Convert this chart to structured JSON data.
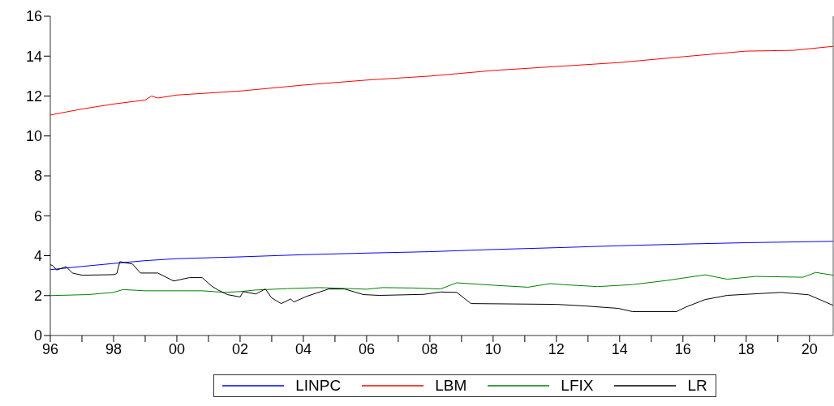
{
  "chart_data": {
    "type": "line",
    "xlim": [
      1996,
      2020.75
    ],
    "ylim": [
      0,
      16
    ],
    "yticks": [
      0,
      2,
      4,
      6,
      8,
      10,
      12,
      14,
      16
    ],
    "xticks": [
      {
        "value": 1996,
        "label": "96"
      },
      {
        "value": 1997,
        "label": null
      },
      {
        "value": 1998,
        "label": "98"
      },
      {
        "value": 1999,
        "label": null
      },
      {
        "value": 2000,
        "label": "00"
      },
      {
        "value": 2001,
        "label": null
      },
      {
        "value": 2002,
        "label": "02"
      },
      {
        "value": 2003,
        "label": null
      },
      {
        "value": 2004,
        "label": "04"
      },
      {
        "value": 2005,
        "label": null
      },
      {
        "value": 2006,
        "label": "06"
      },
      {
        "value": 2007,
        "label": null
      },
      {
        "value": 2008,
        "label": "08"
      },
      {
        "value": 2009,
        "label": null
      },
      {
        "value": 2010,
        "label": "10"
      },
      {
        "value": 2011,
        "label": null
      },
      {
        "value": 2012,
        "label": "12"
      },
      {
        "value": 2013,
        "label": null
      },
      {
        "value": 2014,
        "label": "14"
      },
      {
        "value": 2015,
        "label": null
      },
      {
        "value": 2016,
        "label": "16"
      },
      {
        "value": 2017,
        "label": null
      },
      {
        "value": 2018,
        "label": "18"
      },
      {
        "value": 2019,
        "label": null
      },
      {
        "value": 2020,
        "label": "20"
      }
    ],
    "grid": false,
    "legend": "bottom",
    "marker": "none",
    "line_style": "solid",
    "series": [
      {
        "name": "LINPC",
        "color": "#0000ff",
        "x": [
          1996,
          1997,
          1998,
          1999,
          2000,
          2002,
          2004,
          2006,
          2008,
          2010,
          2012,
          2014,
          2016,
          2018,
          2020.75
        ],
        "values": [
          3.3,
          3.46,
          3.61,
          3.75,
          3.85,
          3.94,
          4.05,
          4.13,
          4.2,
          4.31,
          4.4,
          4.5,
          4.58,
          4.65,
          4.72
        ]
      },
      {
        "name": "LBM",
        "color": "#ff0000",
        "x": [
          1996,
          1997,
          1998,
          1999,
          1999.2,
          1999.4,
          2000,
          2002,
          2004,
          2006,
          2008,
          2010,
          2012,
          2014,
          2016,
          2018,
          2019.5,
          2020.75
        ],
        "values": [
          11.05,
          11.35,
          11.6,
          11.8,
          12.0,
          11.9,
          12.05,
          12.25,
          12.55,
          12.8,
          13.0,
          13.28,
          13.48,
          13.68,
          13.97,
          14.25,
          14.29,
          14.49
        ]
      },
      {
        "name": "LFIX",
        "color": "#008000",
        "x": [
          1996,
          1997.2,
          1998,
          1998.3,
          1999,
          2000,
          2000.8,
          2001.5,
          2002,
          2002.5,
          2003.5,
          2004.5,
          2006,
          2006.5,
          2007.5,
          2008.33,
          2008.85,
          2010,
          2011.1,
          2011.8,
          2012.2,
          2013.3,
          2014.4,
          2015.5,
          2016.7,
          2017.4,
          2018.3,
          2019.8,
          2020.2,
          2020.75
        ],
        "values": [
          2.0,
          2.05,
          2.16,
          2.3,
          2.24,
          2.24,
          2.24,
          2.16,
          2.2,
          2.28,
          2.35,
          2.4,
          2.32,
          2.4,
          2.38,
          2.33,
          2.64,
          2.52,
          2.42,
          2.6,
          2.55,
          2.45,
          2.55,
          2.76,
          3.04,
          2.82,
          2.96,
          2.92,
          3.16,
          3.02
        ]
      },
      {
        "name": "LR",
        "color": "#000000",
        "x": [
          1996,
          1996.08,
          1996.2,
          1996.5,
          1996.7,
          1997,
          1998,
          1998.1,
          1998.2,
          1998.6,
          1998.85,
          1999.4,
          1999.9,
          2000.4,
          2000.8,
          2001.1,
          2001.3,
          2001.6,
          2002,
          2002.1,
          2002.5,
          2002.8,
          2003,
          2003.3,
          2003.6,
          2003.7,
          2004.1,
          2004.8,
          2005.3,
          2005.9,
          2006.4,
          2007.8,
          2008.33,
          2008.85,
          2009.3,
          2012,
          2012.9,
          2013.95,
          2014.4,
          2015.8,
          2016.1,
          2016.7,
          2017.4,
          2019.1,
          2019.97,
          2020.75
        ],
        "values": [
          3.55,
          3.5,
          3.28,
          3.45,
          3.13,
          3.02,
          3.05,
          3.1,
          3.7,
          3.58,
          3.13,
          3.13,
          2.73,
          2.9,
          2.9,
          2.48,
          2.28,
          2.05,
          1.93,
          2.2,
          2.08,
          2.33,
          1.88,
          1.6,
          1.83,
          1.68,
          1.96,
          2.33,
          2.33,
          2.05,
          2.01,
          2.06,
          2.18,
          2.16,
          1.6,
          1.56,
          1.48,
          1.36,
          1.2,
          1.2,
          1.43,
          1.8,
          2.01,
          2.16,
          2.04,
          1.51
        ]
      }
    ]
  }
}
